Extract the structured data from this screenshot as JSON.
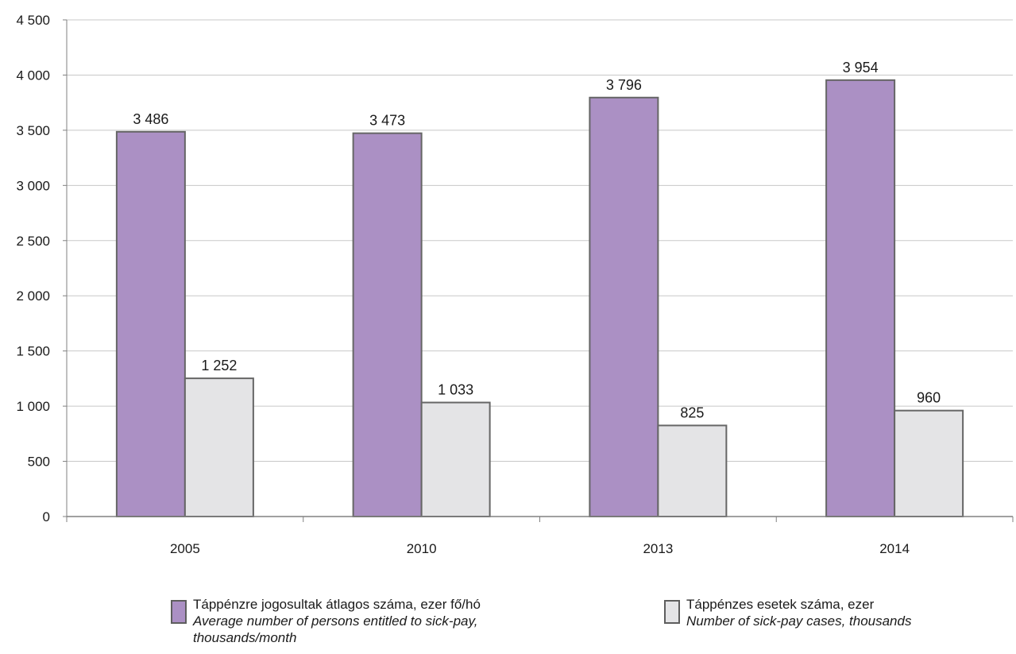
{
  "chart_data": {
    "type": "bar",
    "title": "",
    "xlabel": "",
    "ylabel": "",
    "ylim": [
      0,
      4500
    ],
    "yticks": [
      0,
      500,
      1000,
      1500,
      2000,
      2500,
      3000,
      3500,
      4000,
      4500
    ],
    "ytick_labels": [
      "0",
      "500",
      "1 000",
      "1 500",
      "2 000",
      "2 500",
      "3 000",
      "3 500",
      "4 000",
      "4 500"
    ],
    "grid": true,
    "legend_position": "bottom",
    "categories": [
      "2005",
      "2010",
      "2013",
      "2014"
    ],
    "series": [
      {
        "name": "Táppénzre jogosultak átlagos száma, ezer fő/hó",
        "name_en": "Average number of persons entitled to sick-pay, thousands/month",
        "color": "#ab90c4",
        "values": [
          3486,
          3473,
          3796,
          3954
        ],
        "labels": [
          "3 486",
          "3 473",
          "3 796",
          "3 954"
        ]
      },
      {
        "name": "Táppénzes esetek száma, ezer",
        "name_en": "Number of sick-pay cases, thousands",
        "color": "#e4e4e6",
        "values": [
          1252,
          1033,
          825,
          960
        ],
        "labels": [
          "1 252",
          "1 033",
          "825",
          "960"
        ]
      }
    ]
  },
  "legend": {
    "items": [
      {
        "hu": "Táppénzre jogosultak átlagos száma, ezer fő/hó",
        "en": "Average number of persons entitled to sick-pay, thousands/month"
      },
      {
        "hu": "Táppénzes esetek száma, ezer",
        "en": "Number of sick-pay cases, thousands"
      }
    ]
  }
}
